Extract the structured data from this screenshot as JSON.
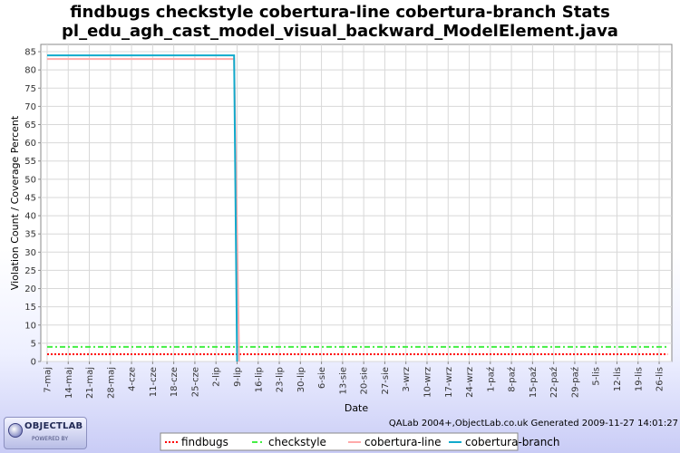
{
  "chart_data": {
    "type": "line",
    "title": "findbugs checkstyle cobertura-line cobertura-branch  Stats",
    "subtitle": "pl_edu_agh_cast_model_visual_backward_ModelElement.java",
    "xlabel": "Date",
    "ylabel": "Violation Count / Coverage Percent",
    "ylim": [
      0,
      87
    ],
    "yticks": [
      0,
      5,
      10,
      15,
      20,
      25,
      30,
      35,
      40,
      45,
      50,
      55,
      60,
      65,
      70,
      75,
      80,
      85
    ],
    "xlim": [
      -0.3,
      29.6
    ],
    "categories": [
      "7-maj",
      "14-maj",
      "21-maj",
      "28-maj",
      "4-cze",
      "11-cze",
      "18-cze",
      "25-cze",
      "2-lip",
      "9-lip",
      "16-lip",
      "23-lip",
      "30-lip",
      "6-sie",
      "13-sie",
      "20-sie",
      "27-sie",
      "3-wrz",
      "10-wrz",
      "17-wrz",
      "24-wrz",
      "1-paź",
      "8-paź",
      "15-paź",
      "22-paź",
      "29-paź",
      "5-lis",
      "12-lis",
      "19-lis",
      "26-lis"
    ],
    "grid": true,
    "legend_position": "bottom",
    "series": [
      {
        "name": "findbugs",
        "color": "#ff0000",
        "style": "dotted",
        "points": [
          [
            0,
            2
          ],
          [
            29.4,
            2
          ]
        ]
      },
      {
        "name": "checkstyle",
        "color": "#44ee44",
        "style": "dashdot",
        "points": [
          [
            0,
            4
          ],
          [
            29.4,
            4
          ]
        ]
      },
      {
        "name": "cobertura-line",
        "color": "#ffaaaa",
        "style": "solid",
        "points": [
          [
            0,
            83
          ],
          [
            8.86,
            83
          ],
          [
            9.1,
            0
          ]
        ]
      },
      {
        "name": "cobertura-branch",
        "color": "#11aacc",
        "style": "solid",
        "points": [
          [
            0,
            84
          ],
          [
            8.86,
            84
          ],
          [
            9.0,
            0
          ]
        ]
      }
    ]
  },
  "footer": {
    "credit": "QALab 2004+,ObjectLab.co.uk Generated 2009-11-27 14:01:27"
  },
  "logo": {
    "text": "OBJECTLAB",
    "sub": "POWERED BY"
  }
}
